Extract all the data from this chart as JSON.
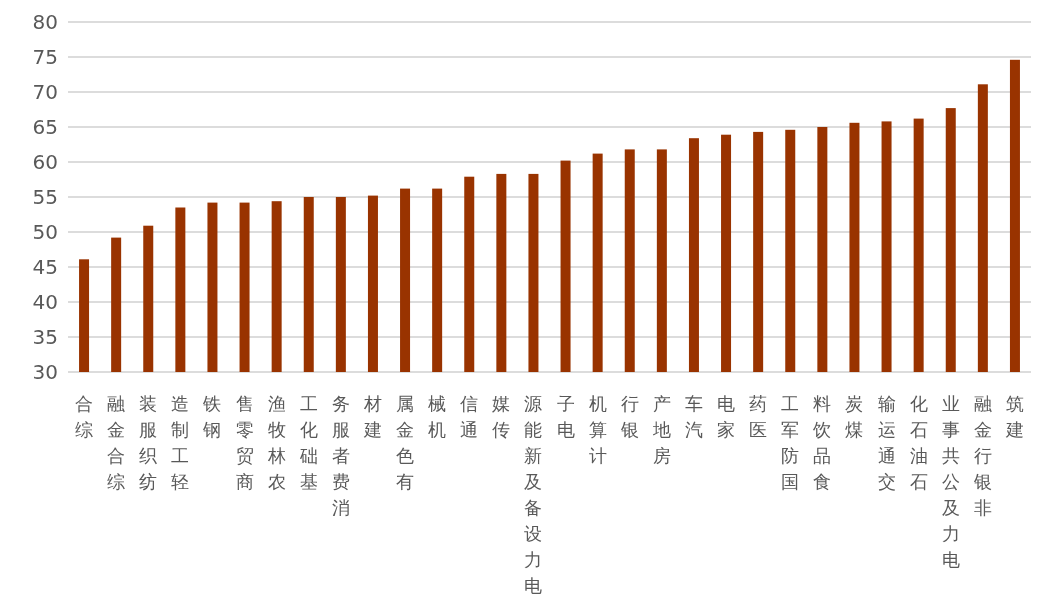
{
  "chart_data": {
    "type": "bar",
    "categories": [
      "综合",
      "综合金融",
      "纺织服装",
      "轻工制造",
      "钢铁",
      "商贸零售",
      "农林牧渔",
      "基础化工",
      "消费者服务",
      "建材",
      "有色金属",
      "机械",
      "通信",
      "传媒",
      "电力设备及新能源",
      "电子",
      "计算机",
      "银行",
      "房地产",
      "汽车",
      "家电",
      "医药",
      "国防军工",
      "食品饮料",
      "煤炭",
      "交通运输",
      "石油石化",
      "电力及公共事业",
      "非银行金融",
      "建筑"
    ],
    "values": [
      46.1,
      49.2,
      50.9,
      53.5,
      54.2,
      54.2,
      54.4,
      55.0,
      55.0,
      55.2,
      56.2,
      56.2,
      57.9,
      58.3,
      58.3,
      60.2,
      61.2,
      61.8,
      61.8,
      63.4,
      63.9,
      64.3,
      64.6,
      65.0,
      65.6,
      65.8,
      66.2,
      67.7,
      71.1,
      74.6
    ],
    "color": "#993300",
    "ylim": [
      30,
      80
    ],
    "yticks": [
      30,
      35,
      40,
      45,
      50,
      55,
      60,
      65,
      70,
      75,
      80
    ],
    "grid": "y"
  }
}
